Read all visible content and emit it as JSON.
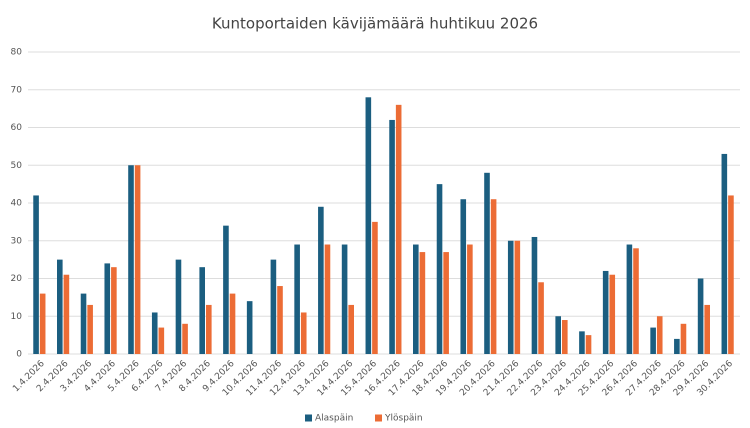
{
  "chart_data": {
    "type": "bar",
    "title": "Kuntoportaiden kävijämäärä huhtikuu 2026",
    "categories": [
      "1.4.2026",
      "2.4.2026",
      "3.4.2026",
      "4.4.2026",
      "5.4.2026",
      "6.4.2026",
      "7.4.2026",
      "8.4.2026",
      "9.4.2026",
      "10.4.2026",
      "11.4.2026",
      "12.4.2026",
      "13.4.2026",
      "14.4.2026",
      "15.4.2026",
      "16.4.2026",
      "17.4.2026",
      "18.4.2026",
      "19.4.2026",
      "20.4.2026",
      "21.4.2026",
      "22.4.2026",
      "23.4.2026",
      "24.4.2026",
      "25.4.2026",
      "26.4.2026",
      "27.4.2026",
      "28.4.2026",
      "29.4.2026",
      "30.4.2026"
    ],
    "series": [
      {
        "name": "Alaspäin",
        "color": "#1b5e80",
        "values": [
          42,
          25,
          16,
          24,
          50,
          11,
          25,
          23,
          34,
          14,
          25,
          29,
          39,
          29,
          68,
          62,
          29,
          45,
          41,
          48,
          30,
          31,
          10,
          6,
          22,
          29,
          7,
          4,
          20,
          53
        ]
      },
      {
        "name": "Ylöspäin",
        "color": "#ec6c35",
        "values": [
          16,
          21,
          13,
          23,
          50,
          7,
          8,
          13,
          16,
          0,
          18,
          11,
          29,
          13,
          35,
          66,
          27,
          27,
          29,
          41,
          30,
          19,
          9,
          5,
          21,
          28,
          10,
          8,
          13,
          42
        ]
      }
    ],
    "ylim": [
      0,
      80
    ],
    "yticks": [
      0,
      10,
      20,
      30,
      40,
      50,
      60,
      70,
      80
    ],
    "grid": true,
    "legend": "bottom"
  }
}
